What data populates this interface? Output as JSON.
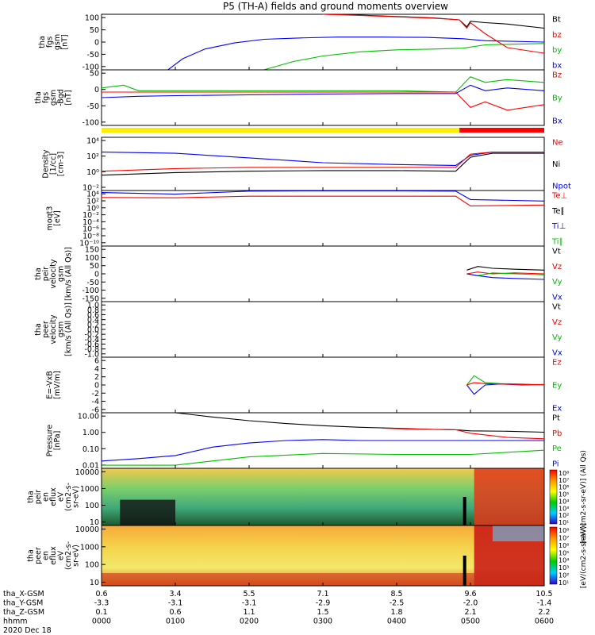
{
  "title": "P5 (TH-A) fields and ground moments overview",
  "chart_data": {
    "type": "line",
    "title": "P5 (TH-A) fields and ground moments overview",
    "date": "2020 Dec 18",
    "x_axis": {
      "tick_times": [
        "0000",
        "0100",
        "0200",
        "0300",
        "0400",
        "0500",
        "0600"
      ],
      "range": [
        0,
        6
      ],
      "extra_rows": [
        {
          "label": "tha_X-GSM",
          "values": [
            "0.6",
            "3.4",
            "5.5",
            "7.1",
            "8.5",
            "9.6",
            "10.5"
          ]
        },
        {
          "label": "tha_Y-GSM",
          "values": [
            "-3.3",
            "-3.1",
            "-3.1",
            "-2.9",
            "-2.5",
            "-2.0",
            "-1.4"
          ]
        },
        {
          "label": "tha_Z-GSM",
          "values": [
            "0.1",
            "0.6",
            "1.1",
            "1.5",
            "1.8",
            "2.1",
            "2.2"
          ]
        },
        {
          "label": "hhmm",
          "values": [
            "0000",
            "0100",
            "0200",
            "0300",
            "0400",
            "0500",
            "0600"
          ]
        }
      ],
      "date_label": "2020 Dec 18"
    },
    "panels": [
      {
        "id": "fgs_gsm",
        "ylabel": [
          "tha",
          "fgs",
          "gsm",
          "[nT]"
        ],
        "ylim": [
          -100,
          100
        ],
        "yticks": [
          "100",
          "50",
          "0",
          "-50",
          "-100"
        ],
        "legend": [
          {
            "name": "Bt",
            "color": "#000000"
          },
          {
            "name": "bz",
            "color": "#ff0000"
          },
          {
            "name": "by",
            "color": "#00c000"
          },
          {
            "name": "bx",
            "color": "#0000ff"
          }
        ],
        "series": [
          {
            "name": "bx",
            "color": "#0000ff",
            "x": [
              0.9,
              1.1,
              1.4,
              1.8,
              2.2,
              2.7,
              3.2,
              3.8,
              4.4,
              4.9,
              5.2,
              6.0
            ],
            "y": [
              -100,
              -60,
              -25,
              -3,
              10,
              15,
              18,
              18,
              17,
              12,
              5,
              0
            ]
          },
          {
            "name": "by",
            "color": "#00c000",
            "x": [
              2.2,
              2.6,
              3.0,
              3.5,
              4.0,
              4.5,
              4.9,
              5.2,
              6.0
            ],
            "y": [
              -100,
              -70,
              -50,
              -35,
              -28,
              -25,
              -22,
              -10,
              -5
            ]
          },
          {
            "name": "Bt",
            "color": "#000000",
            "x": [
              3.0,
              3.5,
              4.0,
              4.5,
              4.85,
              4.95,
              5.0,
              5.2,
              5.5,
              6.0
            ],
            "y": [
              100,
              97,
              92,
              87,
              80,
              55,
              75,
              70,
              65,
              50
            ]
          },
          {
            "name": "bz",
            "color": "#ff0000",
            "x": [
              3.0,
              3.5,
              4.0,
              4.5,
              4.85,
              4.95,
              5.0,
              5.2,
              5.5,
              6.0
            ],
            "y": [
              100,
              96,
              91,
              86,
              80,
              50,
              70,
              30,
              -20,
              -40
            ]
          }
        ]
      },
      {
        "id": "fgs_gse",
        "ylabel": [
          "tha",
          "fgs",
          "gsm",
          "-Bgd",
          "[nT]"
        ],
        "ylim": [
          -125,
          75
        ],
        "yticks": [
          "50",
          "0",
          "-50",
          "-100"
        ],
        "legend": [
          {
            "name": "Bz",
            "color": "#ff0000"
          },
          {
            "name": "By",
            "color": "#00c000"
          },
          {
            "name": "Bx",
            "color": "#0000ff"
          }
        ],
        "series": [
          {
            "name": "By",
            "color": "#00c000",
            "x": [
              0,
              0.3,
              0.5,
              1.0,
              2.0,
              3.0,
              4.0,
              4.8,
              5.0,
              5.2,
              5.5,
              6.0
            ],
            "y": [
              10,
              20,
              0,
              0,
              0,
              0,
              0,
              -5,
              50,
              30,
              40,
              30
            ]
          },
          {
            "name": "Bz",
            "color": "#ff0000",
            "x": [
              0,
              1.0,
              2.0,
              3.0,
              4.0,
              4.8,
              5.0,
              5.2,
              5.5,
              6.0
            ],
            "y": [
              -5,
              -5,
              -5,
              -5,
              -5,
              -5,
              -60,
              -40,
              -70,
              -50
            ]
          },
          {
            "name": "Bx",
            "color": "#0000ff",
            "x": [
              0,
              0.5,
              1.0,
              2.0,
              3.0,
              4.0,
              4.8,
              5.0,
              5.2,
              5.5,
              6.0
            ],
            "y": [
              -25,
              -20,
              -18,
              -15,
              -12,
              -10,
              -10,
              20,
              0,
              10,
              0
            ]
          }
        ]
      },
      {
        "id": "density",
        "ylabel": [
          "Density",
          "[1/cc]",
          "[cm-3]"
        ],
        "ylog": true,
        "ylim": [
          0.0001,
          10000
        ],
        "yticks": [
          "10⁴",
          "10²",
          "10⁰",
          "10⁻²"
        ],
        "legend": [
          {
            "name": "Ne",
            "color": "#ff0000"
          },
          {
            "name": "Ni",
            "color": "#000000"
          },
          {
            "name": "Npot",
            "color": "#0000ff"
          }
        ],
        "series": [
          {
            "name": "Npot",
            "color": "#0000ff",
            "x": [
              0,
              1,
              2,
              3,
              4,
              4.8,
              5.0,
              5.3,
              6.0
            ],
            "y": [
              60,
              40,
              8,
              1.5,
              0.8,
              0.6,
              20,
              60,
              60
            ]
          },
          {
            "name": "Ne",
            "color": "#ff0000",
            "x": [
              0,
              1,
              2,
              3,
              4,
              4.8,
              5.0,
              5.3,
              6.0
            ],
            "y": [
              0.08,
              0.2,
              0.3,
              0.3,
              0.3,
              0.3,
              30,
              60,
              60
            ]
          },
          {
            "name": "Ni",
            "color": "#000000",
            "x": [
              0,
              1,
              2,
              3,
              4,
              4.8,
              5.0,
              5.3,
              6.0
            ],
            "y": [
              0.02,
              0.05,
              0.08,
              0.1,
              0.1,
              0.08,
              10,
              40,
              40
            ]
          }
        ]
      },
      {
        "id": "temp",
        "ylabel": [
          "moqt3",
          "[eV]"
        ],
        "ylog": true,
        "ylim": [
          0.0001,
          10000
        ],
        "yticks": [
          "10⁴",
          "10²",
          "10⁰",
          "10⁻²",
          "10⁻⁴",
          "10⁻⁶",
          "10⁻⁸",
          "10⁻¹⁰"
        ],
        "legend": [
          {
            "name": "Te⊥",
            "color": "#ff0000"
          },
          {
            "name": "Te∥",
            "color": "#000000"
          },
          {
            "name": "Ti⊥",
            "color": "#0000ff"
          },
          {
            "name": "Ti∥",
            "color": "#00c000"
          }
        ],
        "series": [
          {
            "name": "Ti⊥",
            "color": "#0000ff",
            "x": [
              0,
              1,
              2,
              3,
              4,
              4.8,
              5.0,
              6.0
            ],
            "y": [
              5000,
              3000,
              8000,
              9000,
              9000,
              8000,
              500,
              300
            ]
          },
          {
            "name": "Te⊥",
            "color": "#ff0000",
            "x": [
              0,
              1,
              2,
              3,
              4,
              4.8,
              5.0,
              6.0
            ],
            "y": [
              1000,
              900,
              1500,
              1500,
              1500,
              1500,
              60,
              80
            ]
          }
        ]
      },
      {
        "id": "velocity_peir",
        "ylabel": [
          "tha",
          "peir",
          "velocity",
          "gsm",
          "[km/s (All Qs)]"
        ],
        "ylim": [
          -150,
          150
        ],
        "yticks": [
          "150",
          "100",
          "50",
          "0",
          "-50",
          "-100",
          "-150"
        ],
        "legend": [
          {
            "name": "Vt",
            "color": "#000000"
          },
          {
            "name": "Vz",
            "color": "#ff0000"
          },
          {
            "name": "Vy",
            "color": "#00c000"
          },
          {
            "name": "Vx",
            "color": "#0000ff"
          }
        ],
        "series": [
          {
            "name": "Vt",
            "color": "#000000",
            "x": [
              4.95,
              5.1,
              5.3,
              5.6,
              6.0
            ],
            "y": [
              20,
              40,
              30,
              25,
              20
            ]
          },
          {
            "name": "Vz",
            "color": "#ff0000",
            "x": [
              4.95,
              5.1,
              5.3,
              5.6,
              6.0
            ],
            "y": [
              0,
              10,
              0,
              5,
              0
            ]
          },
          {
            "name": "Vy",
            "color": "#00c000",
            "x": [
              4.95,
              5.1,
              5.3,
              5.6,
              6.0
            ],
            "y": [
              0,
              -10,
              5,
              0,
              -5
            ]
          },
          {
            "name": "Vx",
            "color": "#0000ff",
            "x": [
              4.95,
              5.1,
              5.3,
              5.6,
              6.0
            ],
            "y": [
              0,
              -10,
              -20,
              -25,
              -30
            ]
          }
        ]
      },
      {
        "id": "velocity_peer",
        "ylabel": [
          "tha",
          "peer",
          "velocity",
          "gsm",
          "[km/s (All Qs)]"
        ],
        "ylim": [
          -1,
          1
        ],
        "yticks": [
          "1.0",
          "0.8",
          "0.6",
          "0.4",
          "0.2",
          "0.0",
          "-0.2",
          "-0.4",
          "-0.6",
          "-0.8",
          "-1.0"
        ],
        "legend": [
          {
            "name": "Vt",
            "color": "#000000"
          },
          {
            "name": "Vz",
            "color": "#ff0000"
          },
          {
            "name": "Vy",
            "color": "#00c000"
          },
          {
            "name": "Vx",
            "color": "#0000ff"
          }
        ],
        "series": []
      },
      {
        "id": "efield",
        "ylabel": [
          "E=-VxB",
          "[mV/m]"
        ],
        "ylim": [
          -6,
          6
        ],
        "yticks": [
          "6",
          "4",
          "2",
          "0",
          "-2",
          "-4",
          "-6"
        ],
        "legend": [
          {
            "name": "Ez",
            "color": "#ff0000"
          },
          {
            "name": "Ey",
            "color": "#00c000"
          },
          {
            "name": "Ex",
            "color": "#0000ff"
          }
        ],
        "series": [
          {
            "name": "Ey",
            "color": "#00c000",
            "x": [
              4.95,
              5.05,
              5.2,
              5.4,
              5.7,
              6.0
            ],
            "y": [
              0,
              2,
              0.5,
              0.3,
              0.2,
              0
            ]
          },
          {
            "name": "Ex",
            "color": "#0000ff",
            "x": [
              4.95,
              5.05,
              5.2,
              5.4,
              5.7,
              6.0
            ],
            "y": [
              0,
              -2,
              0,
              0.2,
              0,
              0.1
            ]
          },
          {
            "name": "Ez",
            "color": "#ff0000",
            "x": [
              4.95,
              5.05,
              5.2,
              5.4,
              5.7,
              6.0
            ],
            "y": [
              0,
              0.5,
              0.3,
              0.2,
              0.1,
              0.1
            ]
          }
        ]
      },
      {
        "id": "pressure",
        "ylabel": [
          "Pressure",
          "[nPa]"
        ],
        "ylog": true,
        "ylim": [
          0.003,
          30
        ],
        "yticks": [
          "10.00",
          "1.00",
          "0.10",
          "0.01"
        ],
        "legend": [
          {
            "name": "Pt",
            "color": "#000000"
          },
          {
            "name": "Pb",
            "color": "#ff0000"
          },
          {
            "name": "Pe",
            "color": "#00c000"
          },
          {
            "name": "Pi",
            "color": "#0000ff"
          }
        ],
        "series": [
          {
            "name": "Pt",
            "color": "#000000",
            "x": [
              1.0,
              1.5,
              2.0,
              2.5,
              3.0,
              3.5,
              4.0,
              4.5,
              4.8,
              5.0,
              5.5,
              6.0
            ],
            "y": [
              30,
              15,
              8,
              5,
              3.5,
              2.7,
              2.3,
              1.9,
              1.8,
              1.5,
              1.4,
              1.2
            ]
          },
          {
            "name": "Pb",
            "color": "#ff0000",
            "x": [
              3.8,
              4.2,
              4.6,
              4.8,
              5.0,
              5.5,
              6.0
            ],
            "y": [
              2.3,
              2.0,
              1.9,
              1.8,
              1.0,
              0.5,
              0.4
            ]
          },
          {
            "name": "Pi",
            "color": "#0000ff",
            "x": [
              0,
              0.5,
              1.0,
              1.5,
              2.0,
              2.5,
              3.0,
              3.5,
              4.0,
              4.5,
              4.8,
              5.0,
              6.0
            ],
            "y": [
              0.01,
              0.015,
              0.025,
              0.1,
              0.2,
              0.3,
              0.35,
              0.3,
              0.3,
              0.3,
              0.3,
              0.3,
              0.3
            ]
          },
          {
            "name": "Pe",
            "color": "#00c000",
            "x": [
              0,
              1.0,
              1.5,
              2.0,
              3.0,
              4.0,
              4.8,
              5.0,
              6.0
            ],
            "y": [
              0.005,
              0.005,
              0.01,
              0.02,
              0.035,
              0.03,
              0.03,
              0.03,
              0.06
            ]
          }
        ]
      },
      {
        "id": "peir_spec",
        "type": "heatmap",
        "ylabel": [
          "tha",
          "peir",
          "en",
          "eflux",
          "eV",
          "(cm2-s-",
          "sr-eV)"
        ],
        "yticks": [
          "10000",
          "1000",
          "100",
          "10"
        ],
        "colorbar_ticks": [
          "10⁸",
          "10⁷",
          "10⁶",
          "10⁵",
          "10⁴",
          "10³",
          "10²",
          "10¹"
        ],
        "colorbar_label": "[eV/(cm2-s-sr-eV)] (All Qs)"
      },
      {
        "id": "peer_spec",
        "type": "heatmap",
        "ylabel": [
          "tha",
          "peer",
          "en",
          "eflux",
          "eV",
          "(cm2-s-",
          "sr-eV)"
        ],
        "yticks": [
          "10000",
          "1000",
          "100",
          "10"
        ],
        "colorbar_ticks": [
          "10⁸",
          "10⁷",
          "10⁶",
          "10⁵",
          "10⁴",
          "10³",
          "10²",
          "10¹"
        ],
        "colorbar_label": "[eV/(cm2-s-sr-eV)]"
      }
    ]
  }
}
